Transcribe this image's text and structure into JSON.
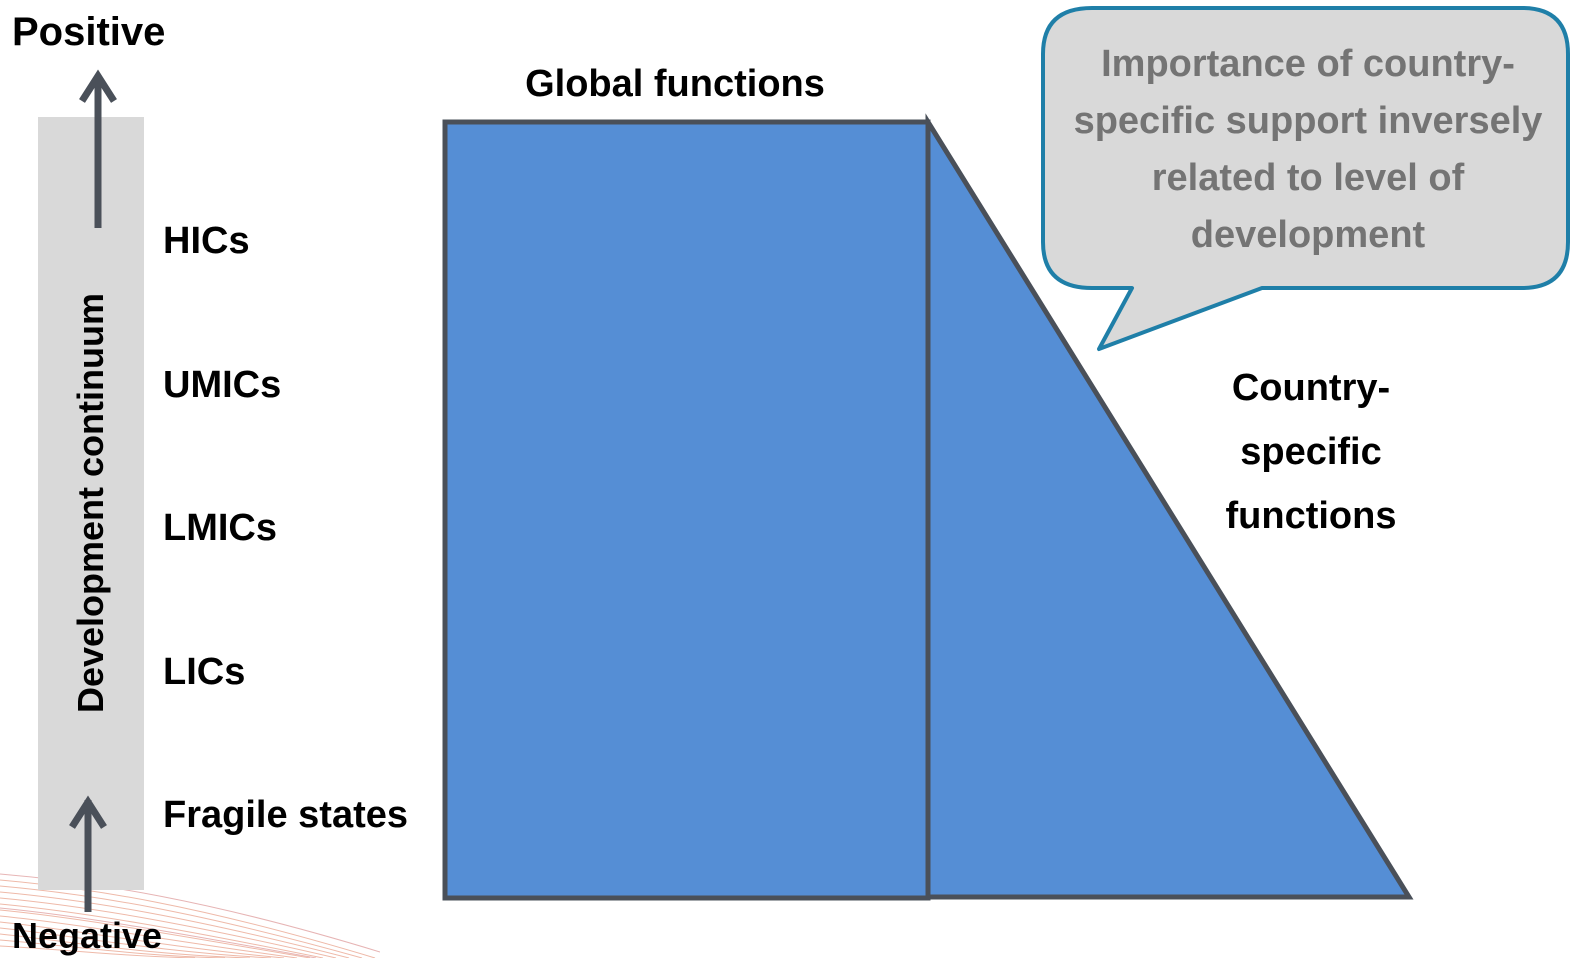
{
  "axis": {
    "positive_label": "Positive",
    "negative_label": "Negative",
    "continuum_label": "Development continuum"
  },
  "levels": {
    "hics": "HICs",
    "umics": "UMICs",
    "lmics": "LMICs",
    "lics": "LICs",
    "fragile": "Fragile states"
  },
  "global_functions": {
    "title": "Global functions"
  },
  "country_specific": {
    "label": "Country-specific functions"
  },
  "callout": {
    "text": "Importance of country-specific support inversely related to level of development"
  },
  "colors": {
    "shape_fill": "#558ed5",
    "shape_stroke": "#4a5059",
    "arrow": "#4a5059",
    "continuum_bar": "#d9d9d9",
    "callout_fill": "#d9d9d9",
    "callout_stroke": "#1f7fa8",
    "callout_text": "#747474",
    "deco_lines": "#e9a28c"
  }
}
